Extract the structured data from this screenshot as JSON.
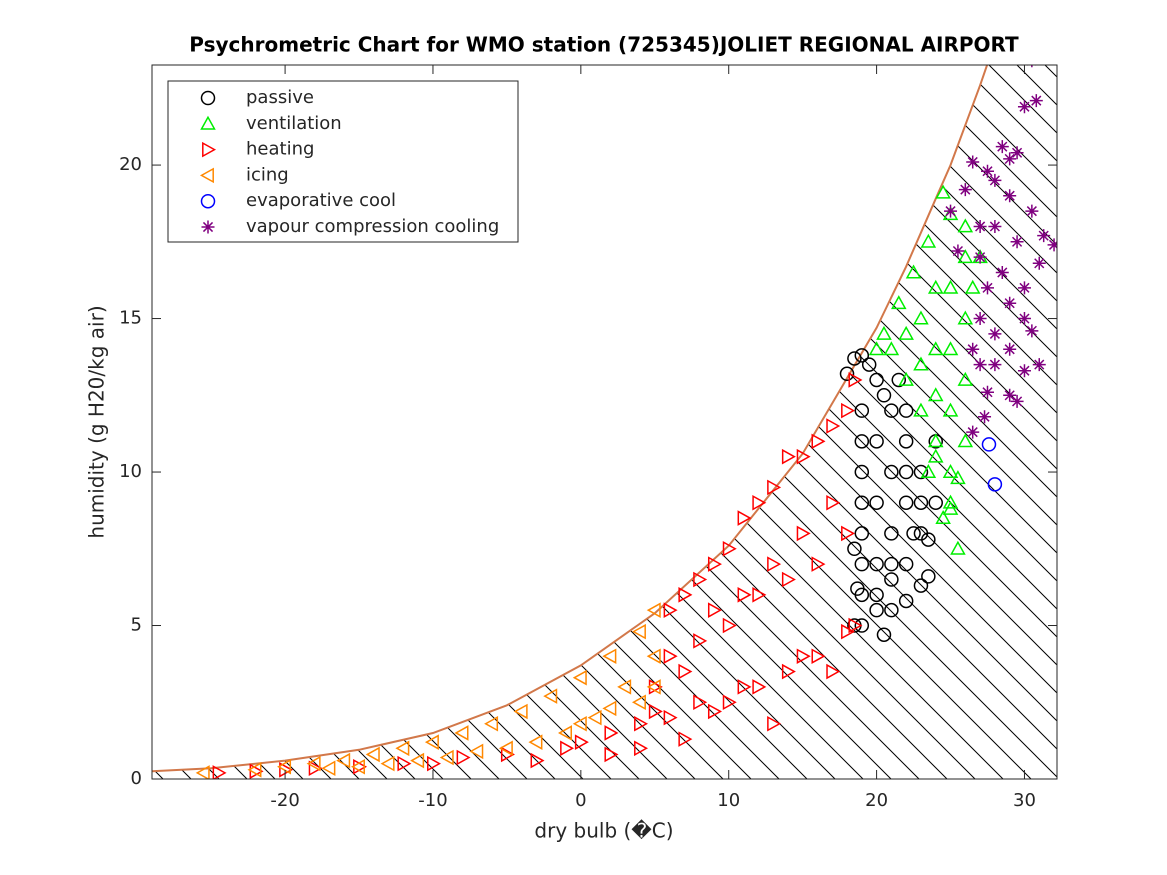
{
  "chart_data": {
    "type": "scatter",
    "title": "Psychrometric Chart for WMO station (725345)JOLIET REGIONAL AIRPORT",
    "x_label": "dry bulb (�C)",
    "y_label": "humidity (g H20/kg air)",
    "xlim": [
      -29,
      32.2
    ],
    "ylim": [
      0,
      23.26
    ],
    "xticks": [
      -20,
      -10,
      0,
      10,
      20,
      30
    ],
    "yticks": [
      0,
      5,
      10,
      15,
      20
    ],
    "legend": "upper left",
    "saturation_curve": {
      "color": "#d2784a",
      "x": [
        -29,
        -25,
        -20,
        -15,
        -10,
        -5,
        0,
        5,
        10,
        15,
        20,
        22,
        24,
        25,
        26,
        27,
        28
      ],
      "values": [
        0.25,
        0.35,
        0.6,
        0.95,
        1.5,
        2.4,
        3.7,
        5.4,
        7.6,
        10.6,
        14.7,
        16.7,
        18.9,
        20.0,
        21.3,
        22.6,
        24.0
      ]
    },
    "series": [
      {
        "name": "passive",
        "color": "#000000",
        "marker": "circle",
        "x": [
          19,
          19.5,
          20,
          20.5,
          21,
          19,
          19,
          19,
          19,
          19,
          19,
          19,
          19,
          20,
          20,
          20,
          20,
          21,
          21,
          21,
          22,
          22,
          22,
          22.5,
          23,
          23,
          23.5,
          23.5,
          23,
          22,
          21,
          20.5,
          18.5,
          18.7,
          18.5,
          18,
          18.5,
          24,
          24,
          21.5,
          22,
          20,
          21,
          22,
          23
        ],
        "values": [
          13.8,
          13.5,
          13,
          12.5,
          12,
          12,
          11,
          10,
          9,
          8,
          7,
          6,
          5,
          11,
          9,
          7,
          5.5,
          10,
          8,
          6.5,
          11,
          9,
          7,
          8,
          10,
          8,
          7.8,
          6.6,
          6.3,
          5.8,
          5.5,
          4.7,
          5,
          6.2,
          7.5,
          13.2,
          13.7,
          9,
          11,
          13,
          12,
          6,
          7,
          10,
          9
        ]
      },
      {
        "name": "ventilation",
        "color": "#00ee00",
        "marker": "triangle-up",
        "x": [
          24.5,
          25,
          26,
          23.5,
          22.5,
          21.5,
          20.5,
          20,
          22,
          23,
          24,
          25,
          25,
          25,
          24.5,
          25.5,
          26,
          26,
          26,
          26,
          25,
          25,
          25,
          24,
          24,
          24,
          23,
          23,
          22,
          21,
          25.5,
          26.5,
          27,
          24,
          23.5
        ],
        "values": [
          19.1,
          18.4,
          18,
          17.5,
          16.5,
          15.5,
          14.5,
          14,
          13,
          12,
          11,
          10,
          9,
          8.8,
          8.5,
          7.5,
          17,
          15,
          13,
          11,
          16,
          14,
          12,
          16,
          14,
          12.5,
          15,
          13.5,
          14.5,
          14,
          9.8,
          16,
          17,
          10.5,
          10
        ]
      },
      {
        "name": "heating",
        "color": "#ff0000",
        "marker": "triangle-right",
        "x": [
          -24.5,
          -22,
          -20,
          -18,
          -15,
          -12,
          -10,
          -8,
          -5,
          -3,
          -1,
          0,
          2,
          4,
          5,
          6,
          7,
          8,
          9,
          10,
          11,
          12,
          13,
          14,
          15,
          16,
          17,
          18,
          18.5,
          6,
          7,
          8,
          9,
          10,
          11,
          12,
          13,
          14,
          15,
          16,
          17,
          18,
          18.5,
          6,
          8,
          10,
          12,
          14,
          16,
          18,
          17,
          15,
          13,
          11,
          9,
          7,
          5,
          4,
          2
        ],
        "values": [
          0.2,
          0.25,
          0.3,
          0.35,
          0.4,
          0.5,
          0.5,
          0.7,
          0.8,
          0.6,
          1,
          1.2,
          1.5,
          1.8,
          2.2,
          2,
          1.3,
          2.5,
          2.2,
          2.5,
          3,
          3,
          1.8,
          3.5,
          4,
          4,
          3.5,
          4.8,
          5,
          5.5,
          6,
          6.5,
          7,
          7.5,
          8.5,
          9,
          9.5,
          10.5,
          10.5,
          11,
          11.5,
          12,
          13,
          4,
          4.5,
          5,
          6,
          6.5,
          7,
          8,
          9,
          8,
          7,
          6,
          5.5,
          3.5,
          3,
          1,
          0.8
        ]
      },
      {
        "name": "icing",
        "color": "#ff8800",
        "marker": "triangle-left",
        "x": [
          -25.5,
          -22,
          -20,
          -18,
          -16,
          -14,
          -12,
          -10,
          -8,
          -6,
          -4,
          -2,
          0,
          2,
          4,
          5,
          5,
          3,
          1,
          -1,
          -3,
          -5,
          -7,
          -9,
          -11,
          -13,
          -15,
          -17,
          5,
          4,
          2,
          0
        ],
        "values": [
          0.2,
          0.3,
          0.4,
          0.5,
          0.6,
          0.8,
          1,
          1.2,
          1.5,
          1.8,
          2.2,
          2.7,
          3.3,
          4,
          4.8,
          5.5,
          4,
          3,
          2,
          1.5,
          1.2,
          1,
          0.9,
          0.7,
          0.6,
          0.5,
          0.4,
          0.35,
          3,
          2.5,
          2.3,
          1.8
        ]
      },
      {
        "name": "evaporative cool",
        "color": "#0000ff",
        "marker": "circle",
        "x": [
          27.6,
          28
        ],
        "values": [
          10.9,
          9.6
        ]
      },
      {
        "name": "vapour compression cooling",
        "color": "#800080",
        "marker": "asterisk",
        "x": [
          30.5,
          30,
          30.8,
          28.5,
          29,
          29.5,
          26.5,
          27.5,
          28,
          26,
          29,
          30.5,
          31.3,
          27,
          28,
          29.5,
          31,
          32,
          27,
          28.5,
          30,
          27.5,
          29,
          30,
          27,
          28,
          29,
          30.5,
          31,
          27,
          28,
          30,
          29,
          27.5,
          29.5,
          27.3,
          26.5,
          25,
          25.5,
          26.5
        ],
        "values": [
          23.4,
          21.9,
          22.1,
          20.6,
          20.2,
          20.4,
          20.1,
          19.8,
          19.5,
          19.2,
          19,
          18.5,
          17.7,
          18,
          18,
          17.5,
          16.8,
          17.4,
          17,
          16.5,
          16,
          16,
          15.5,
          15,
          15,
          14.5,
          14,
          14.6,
          13.5,
          13.5,
          13.5,
          13.3,
          12.5,
          12.6,
          12.3,
          11.8,
          11.3,
          18.5,
          17.2,
          14
        ]
      }
    ]
  }
}
